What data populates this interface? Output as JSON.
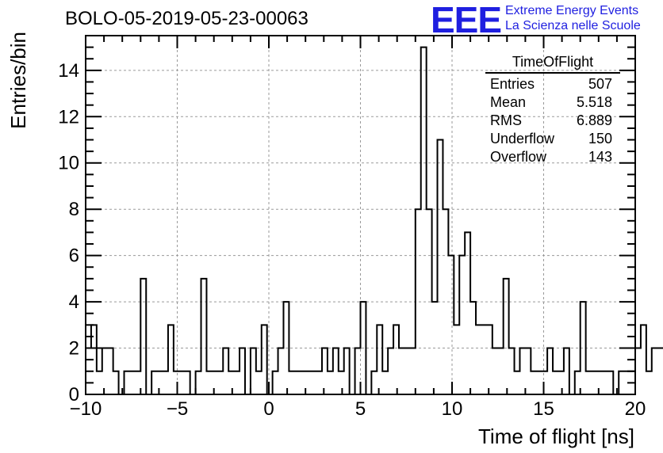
{
  "header": {
    "title": "BOLO-05-2019-05-23-00063",
    "logo_mark": "EEE",
    "logo_line1": "Extreme Energy Events",
    "logo_line2": "La Scienza nelle Scuole"
  },
  "stats_box": {
    "title": "TimeOfFlight",
    "rows": [
      {
        "label": "Entries",
        "value": "507"
      },
      {
        "label": "Mean",
        "value": "5.518"
      },
      {
        "label": "RMS",
        "value": "6.889"
      },
      {
        "label": "Underflow",
        "value": "150"
      },
      {
        "label": "Overflow",
        "value": "143"
      }
    ]
  },
  "colors": {
    "line": "#000000",
    "grid": "#9a9a9a",
    "logo": "#1f1fe0"
  },
  "chart_data": {
    "type": "histogram",
    "xlabel": "Time of flight [ns]",
    "ylabel": "Entries/bin",
    "xlim": [
      -10,
      20
    ],
    "ylim": [
      0,
      15.5
    ],
    "x_ticks": [
      -10,
      -5,
      0,
      5,
      10,
      15,
      20
    ],
    "x_tick_labels": [
      "−10",
      "−5",
      "0",
      "5",
      "10",
      "15",
      "20"
    ],
    "y_ticks": [
      0,
      2,
      4,
      6,
      8,
      10,
      12,
      14
    ],
    "y_tick_labels": [
      "0",
      "2",
      "4",
      "6",
      "8",
      "10",
      "12",
      "14"
    ],
    "grid": true,
    "bin_edges_start": -10,
    "bin_width": 0.3,
    "values": [
      2,
      3,
      1,
      2,
      2,
      1,
      0,
      1,
      1,
      1,
      5,
      0,
      1,
      1,
      1,
      3,
      1,
      1,
      1,
      0,
      1,
      5,
      1,
      1,
      1,
      2,
      1,
      1,
      2,
      0,
      2,
      1,
      3,
      0,
      1,
      2,
      4,
      1,
      1,
      1,
      1,
      1,
      1,
      2,
      1,
      2,
      1,
      2,
      0,
      2,
      4,
      0,
      1,
      3,
      1,
      2,
      3,
      2,
      2,
      2,
      8,
      15,
      8,
      4,
      11,
      8,
      6,
      3,
      6,
      7,
      4,
      3,
      3,
      3,
      2,
      2,
      5,
      2,
      1,
      2,
      2,
      1,
      1,
      1,
      2,
      1,
      1,
      2,
      0,
      1,
      4,
      1,
      1,
      1,
      1,
      1,
      0,
      1,
      1,
      1,
      2,
      3,
      1,
      2,
      2,
      2
    ]
  }
}
